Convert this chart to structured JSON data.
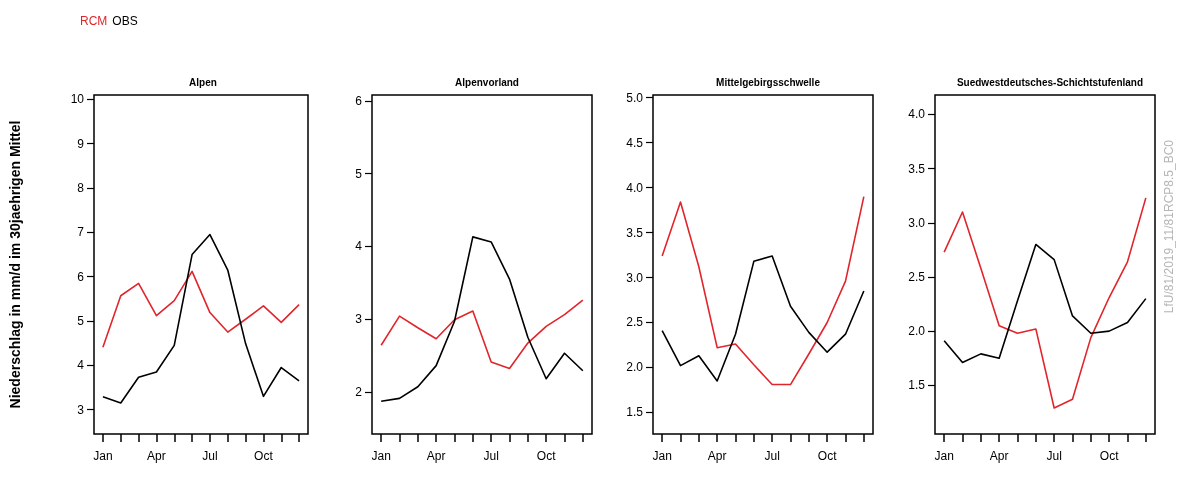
{
  "chart_data": [
    {
      "type": "line",
      "title": "Alpen",
      "ylabel": "Niederschlag in mm/d im 30jaehrigen Mittel",
      "legend": "top left",
      "marker": "none",
      "line_style": "solid",
      "grid": false,
      "categories": [
        "Jan",
        null,
        null,
        "Apr",
        null,
        null,
        "Jul",
        null,
        null,
        "Oct",
        null,
        null
      ],
      "ylim": [
        2.45,
        10.1
      ],
      "yticks": [
        3,
        4,
        5,
        6,
        7,
        8,
        9,
        10
      ],
      "series": [
        {
          "name": "RCM",
          "color": "#e0262c",
          "values": [
            4.41,
            5.57,
            5.85,
            5.12,
            5.46,
            6.12,
            5.19,
            4.75,
            5.04,
            5.34,
            4.97,
            5.37
          ]
        },
        {
          "name": "OBS",
          "color": "#000000",
          "values": [
            3.29,
            3.15,
            3.73,
            3.85,
            4.45,
            6.5,
            6.95,
            6.15,
            4.49,
            3.3,
            3.95,
            3.65
          ]
        }
      ]
    },
    {
      "type": "line",
      "title": "Alpenvorland",
      "marker": "none",
      "line_style": "solid",
      "grid": false,
      "categories": [
        "Jan",
        null,
        null,
        "Apr",
        null,
        null,
        "Jul",
        null,
        null,
        "Oct",
        null,
        null
      ],
      "ylim": [
        1.42,
        6.08
      ],
      "yticks": [
        2,
        3,
        4,
        5,
        6
      ],
      "series": [
        {
          "color": "#e0262c",
          "values": [
            2.64,
            3.04,
            2.88,
            2.73,
            2.99,
            3.11,
            2.41,
            2.32,
            2.67,
            2.9,
            3.06,
            3.26
          ]
        },
        {
          "color": "#000000",
          "values": [
            1.87,
            1.91,
            2.07,
            2.36,
            2.97,
            4.13,
            4.06,
            3.55,
            2.75,
            2.18,
            2.53,
            2.29
          ]
        }
      ]
    },
    {
      "type": "line",
      "title": "Mittelgebirgsschwelle",
      "marker": "none",
      "line_style": "solid",
      "grid": false,
      "categories": [
        "Jan",
        null,
        null,
        "Apr",
        null,
        null,
        "Jul",
        null,
        null,
        "Oct",
        null,
        null
      ],
      "ylim": [
        1.26,
        5.03
      ],
      "yticks": [
        1.5,
        {
          "value": 2,
          "label": "2.0"
        },
        2.5,
        {
          "value": 3,
          "label": "3.0"
        },
        3.5,
        {
          "value": 4,
          "label": "4.0"
        },
        4.5,
        {
          "value": 5,
          "label": "5.0"
        }
      ],
      "series": [
        {
          "color": "#e0262c",
          "values": [
            3.24,
            3.84,
            3.12,
            2.22,
            2.26,
            2.03,
            1.81,
            1.81,
            2.15,
            2.5,
            2.96,
            3.9
          ]
        },
        {
          "color": "#000000",
          "values": [
            2.41,
            2.02,
            2.13,
            1.85,
            2.37,
            3.18,
            3.24,
            2.68,
            2.39,
            2.17,
            2.37,
            2.85
          ]
        }
      ]
    },
    {
      "type": "line",
      "title": "Suedwestdeutsches-Schichtstufenland",
      "marker": "none",
      "line_style": "solid",
      "grid": false,
      "annotations": [
        "LfU/81/2019_11/81RCP8.5_BC0"
      ],
      "categories": [
        "Jan",
        null,
        null,
        "Apr",
        null,
        null,
        "Jul",
        null,
        null,
        "Oct",
        null,
        null
      ],
      "ylim": [
        1.05,
        4.18
      ],
      "yticks": [
        1.5,
        {
          "value": 2,
          "label": "2.0"
        },
        2.5,
        {
          "value": 3,
          "label": "3.0"
        },
        3.5,
        {
          "value": 4,
          "label": "4.0"
        }
      ],
      "series": [
        {
          "color": "#e0262c",
          "values": [
            2.73,
            3.1,
            2.58,
            2.05,
            1.98,
            2.02,
            1.29,
            1.37,
            1.94,
            2.31,
            2.64,
            3.23
          ]
        },
        {
          "color": "#000000",
          "values": [
            1.91,
            1.71,
            1.79,
            1.75,
            2.28,
            2.8,
            2.66,
            2.14,
            1.98,
            2.0,
            2.08,
            2.3
          ]
        }
      ]
    }
  ]
}
